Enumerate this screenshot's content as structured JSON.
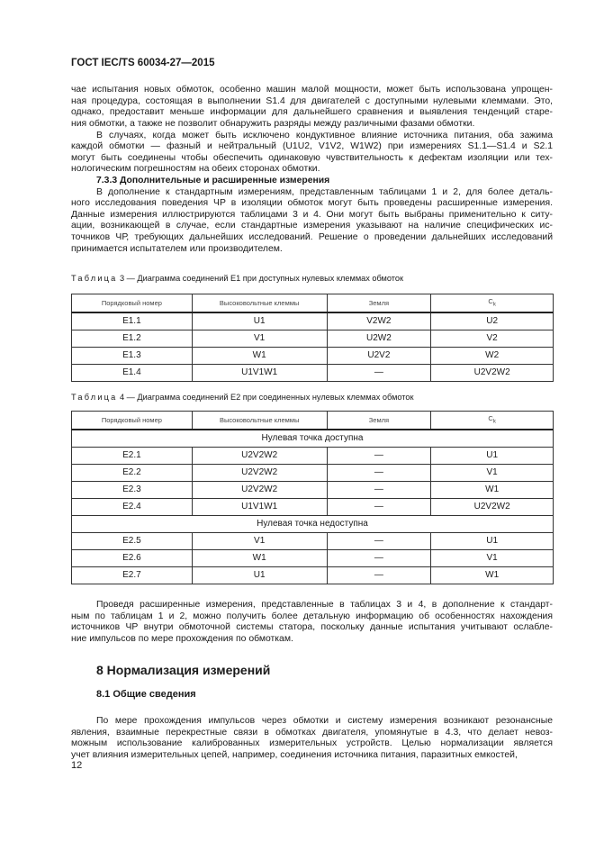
{
  "header": {
    "title": "ГОСТ IEC/TS 60034-27—2015"
  },
  "p1": [
    "чае испытания новых обмоток, особенно машин малой мощности, может быть использована упрощен-",
    "ная процедура, состоящая в выполнении S1.4 для двигателей с доступными нулевыми клеммами. Это,",
    "однако, предоставит меньше информации для дальнейшего сравнения и выявления тенденций старе-",
    "ния обмотки, а также не позволит обнаружить разряды между различными фазами обмотки."
  ],
  "p2": [
    "В случаях, когда может быть исключено кондуктивное влияние источника питания, оба зажима",
    "каждой обмотки — фазный и нейтральный (U1U2, V1V2, W1W2) при измерениях S1.1—S1.4 и S2.1",
    "могут быть соединены чтобы обеспечить одинаковую чувствительность к дефектам изоляции или тех-",
    "нологическим погрешностям на обеих сторонах обмотки."
  ],
  "section733": "7.3.3 Дополнительные и расширенные измерения",
  "p3": [
    "В дополнение к стандартным измерениям, представленным таблицами 1 и 2, для более деталь-",
    "ного исследования поведения ЧР в изоляции обмоток могут быть проведены расширенные измерения.",
    "Данные измерения иллюстрируются таблицами 3 и 4. Они могут быть выбраны применительно к ситу-",
    "ации, возникающей в случае, если стандартные измерения указывают на наличие специфических ис-",
    "точников ЧР, требующих дальнейших исследований. Решение о проведении дальнейших исследований",
    "принимается испытателем или производителем."
  ],
  "table3": {
    "caption_word": "Таблица",
    "caption_text": "3 — Диаграмма соединений E1 при доступных нулевых клеммах обмоток",
    "headers": [
      "Порядковый номер",
      "Высоковольтные клеммы",
      "Земля",
      "C",
      "k"
    ],
    "rows": [
      [
        "E1.1",
        "U1",
        "V2W2",
        "U2"
      ],
      [
        "E1.2",
        "V1",
        "U2W2",
        "V2"
      ],
      [
        "E1.3",
        "W1",
        "U2V2",
        "W2"
      ],
      [
        "E1.4",
        "U1V1W1",
        "—",
        "U2V2W2"
      ]
    ]
  },
  "table4": {
    "caption_word": "Таблица",
    "caption_text": "4 — Диаграмма соединений E2 при соединенных нулевых клеммах обмоток",
    "headers": [
      "Порядковый номер",
      "Высоковольтные клеммы",
      "Земля",
      "C",
      "k"
    ],
    "group1": "Нулевая точка доступна",
    "rows1": [
      [
        "E2.1",
        "U2V2W2",
        "—",
        "U1"
      ],
      [
        "E2.2",
        "U2V2W2",
        "—",
        "V1"
      ],
      [
        "E2.3",
        "U2V2W2",
        "—",
        "W1"
      ],
      [
        "E2.4",
        "U1V1W1",
        "—",
        "U2V2W2"
      ]
    ],
    "group2": "Нулевая точка недоступна",
    "rows2": [
      [
        "E2.5",
        "V1",
        "—",
        "U1"
      ],
      [
        "E2.6",
        "W1",
        "—",
        "V1"
      ],
      [
        "E2.7",
        "U1",
        "—",
        "W1"
      ]
    ]
  },
  "p4": [
    "Проведя расширенные измерения, представленные в таблицах 3 и 4, в дополнение к стандарт-",
    "ным по таблицам 1 и 2, можно получить более детальную информацию об особенностях нахождения",
    "источников ЧР внутри обмоточной системы статора, поскольку данные испытания учитывают ослабле-",
    "ние импульсов по мере прохождения по обмоткам."
  ],
  "section8": "8 Нормализация измерений",
  "section81": "8.1 Общие сведения",
  "p5": [
    "По мере прохождения импульсов через обмотки и систему измерения возникают резонансные",
    "явления, взаимные перекрестные связи в обмотках двигателя, упомянутые в 4.3, что делает невоз-",
    "можным использование калиброванных измерительных устройств. Целью нормализации является",
    "учет влияния измерительных цепей, например, соединения источника питания, паразитных емкостей,"
  ],
  "page_number": "12"
}
